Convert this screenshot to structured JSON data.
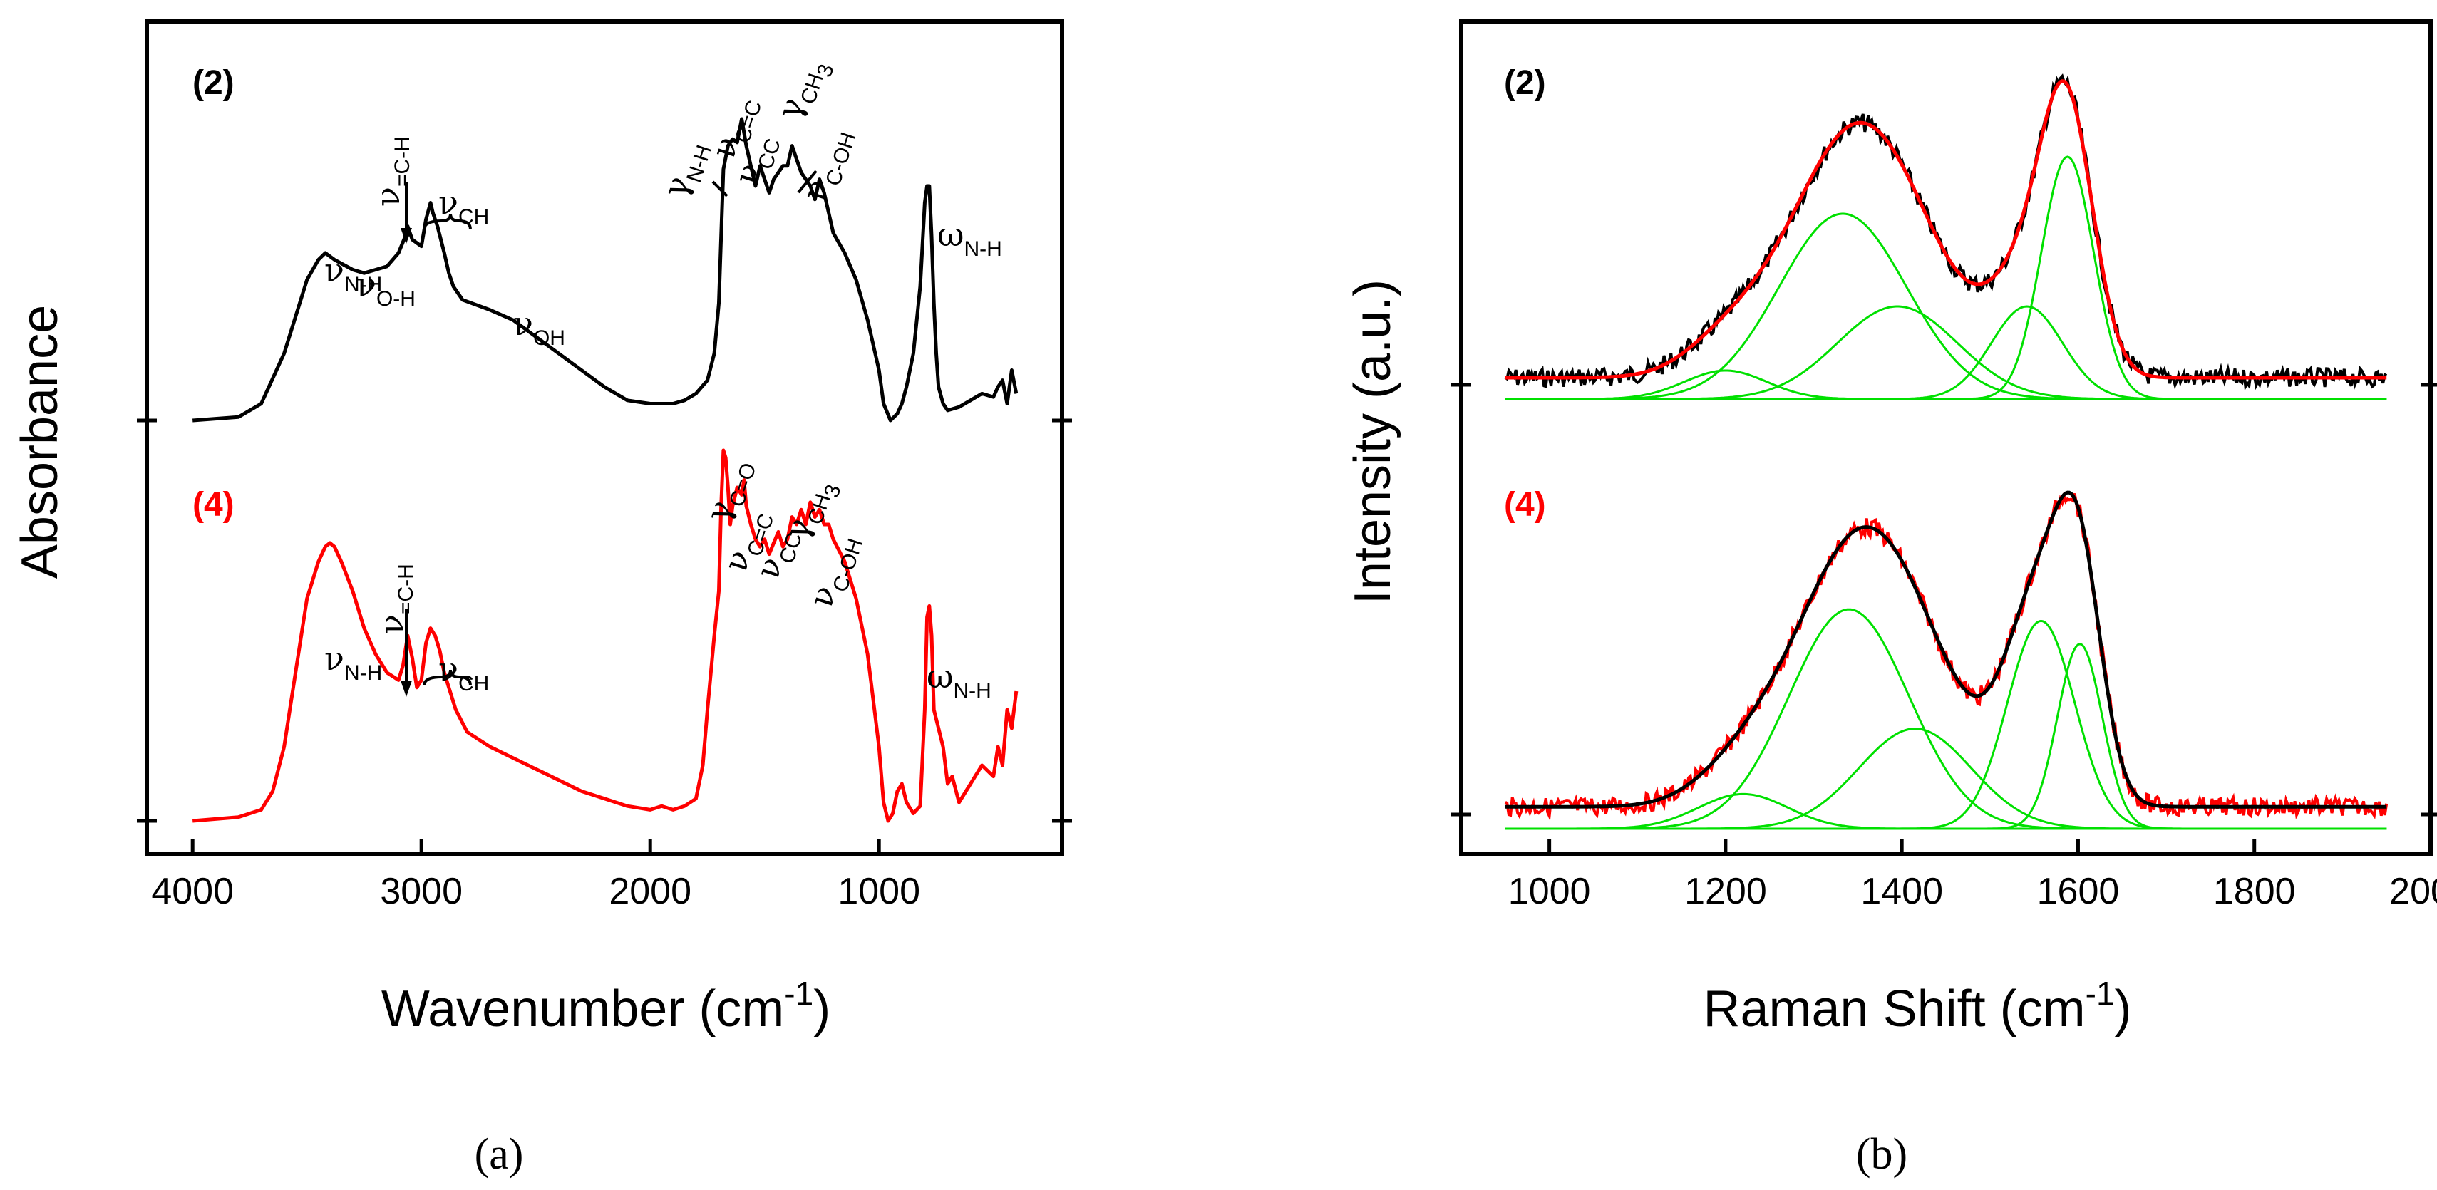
{
  "chart_data": [
    {
      "panel": "a",
      "type": "line",
      "caption": "(a)",
      "xlabel": "Wavenumber (cm",
      "xlabel_sup": "-1",
      "xlabel_end": ")",
      "ylabel": "Absorbance",
      "xlim": [
        4200,
        200
      ],
      "xticks": [
        4000,
        3000,
        2000,
        1000
      ],
      "xtick_labels": [
        "4000",
        "3000",
        "2000",
        "1000"
      ],
      "series": [
        {
          "name": "(2)",
          "color": "#000000",
          "x": [
            4000,
            3800,
            3700,
            3600,
            3500,
            3450,
            3420,
            3380,
            3300,
            3250,
            3200,
            3150,
            3100,
            3070,
            3060,
            3040,
            3000,
            2980,
            2960,
            2950,
            2930,
            2900,
            2880,
            2860,
            2820,
            2700,
            2600,
            2500,
            2400,
            2300,
            2200,
            2100,
            2000,
            1950,
            1900,
            1850,
            1800,
            1750,
            1720,
            1700,
            1690,
            1680,
            1660,
            1640,
            1620,
            1600,
            1580,
            1560,
            1540,
            1520,
            1500,
            1480,
            1460,
            1440,
            1420,
            1400,
            1380,
            1360,
            1340,
            1320,
            1300,
            1280,
            1260,
            1240,
            1220,
            1200,
            1150,
            1100,
            1050,
            1000,
            980,
            950,
            920,
            900,
            880,
            850,
            820,
            800,
            790,
            780,
            770,
            760,
            750,
            740,
            720,
            700,
            650,
            600,
            550,
            500,
            480,
            460,
            440,
            420,
            400
          ],
          "y": [
            0.0,
            0.01,
            0.05,
            0.2,
            0.42,
            0.48,
            0.5,
            0.48,
            0.45,
            0.44,
            0.45,
            0.46,
            0.5,
            0.55,
            0.58,
            0.54,
            0.52,
            0.6,
            0.65,
            0.62,
            0.58,
            0.5,
            0.44,
            0.4,
            0.36,
            0.33,
            0.3,
            0.25,
            0.2,
            0.15,
            0.1,
            0.06,
            0.05,
            0.05,
            0.05,
            0.06,
            0.08,
            0.12,
            0.2,
            0.35,
            0.55,
            0.75,
            0.82,
            0.84,
            0.83,
            0.9,
            0.82,
            0.76,
            0.7,
            0.76,
            0.72,
            0.68,
            0.72,
            0.74,
            0.76,
            0.76,
            0.82,
            0.78,
            0.74,
            0.72,
            0.7,
            0.66,
            0.72,
            0.68,
            0.62,
            0.56,
            0.5,
            0.42,
            0.3,
            0.15,
            0.05,
            0.0,
            0.02,
            0.05,
            0.1,
            0.2,
            0.4,
            0.65,
            0.7,
            0.7,
            0.55,
            0.35,
            0.2,
            0.1,
            0.05,
            0.03,
            0.04,
            0.06,
            0.08,
            0.07,
            0.1,
            0.12,
            0.05,
            0.15,
            0.08
          ]
        },
        {
          "name": "(4)",
          "color": "#ff0000",
          "x": [
            4000,
            3800,
            3700,
            3650,
            3600,
            3550,
            3500,
            3450,
            3420,
            3400,
            3380,
            3350,
            3300,
            3250,
            3200,
            3150,
            3100,
            3080,
            3060,
            3040,
            3020,
            3000,
            2980,
            2960,
            2940,
            2920,
            2900,
            2880,
            2850,
            2800,
            2700,
            2600,
            2500,
            2400,
            2300,
            2200,
            2100,
            2000,
            1950,
            1900,
            1850,
            1800,
            1770,
            1750,
            1720,
            1700,
            1690,
            1680,
            1670,
            1660,
            1650,
            1640,
            1620,
            1600,
            1590,
            1580,
            1560,
            1540,
            1520,
            1500,
            1480,
            1460,
            1440,
            1420,
            1400,
            1380,
            1360,
            1340,
            1320,
            1300,
            1280,
            1260,
            1240,
            1220,
            1200,
            1150,
            1100,
            1050,
            1000,
            980,
            960,
            940,
            920,
            900,
            880,
            850,
            820,
            800,
            790,
            780,
            770,
            760,
            740,
            720,
            700,
            680,
            650,
            600,
            550,
            500,
            480,
            460,
            440,
            420,
            400
          ],
          "y": [
            0.0,
            0.01,
            0.03,
            0.08,
            0.2,
            0.4,
            0.6,
            0.7,
            0.74,
            0.75,
            0.74,
            0.7,
            0.62,
            0.52,
            0.45,
            0.4,
            0.38,
            0.42,
            0.5,
            0.44,
            0.36,
            0.38,
            0.48,
            0.52,
            0.5,
            0.46,
            0.4,
            0.36,
            0.3,
            0.24,
            0.2,
            0.17,
            0.14,
            0.11,
            0.08,
            0.06,
            0.04,
            0.03,
            0.04,
            0.03,
            0.04,
            0.06,
            0.15,
            0.3,
            0.5,
            0.62,
            0.85,
            1.0,
            0.98,
            0.9,
            0.8,
            0.85,
            0.9,
            0.88,
            0.92,
            0.85,
            0.8,
            0.76,
            0.74,
            0.76,
            0.72,
            0.75,
            0.78,
            0.74,
            0.76,
            0.82,
            0.8,
            0.84,
            0.8,
            0.86,
            0.82,
            0.84,
            0.8,
            0.8,
            0.76,
            0.7,
            0.6,
            0.45,
            0.2,
            0.05,
            0.0,
            0.02,
            0.08,
            0.1,
            0.05,
            0.02,
            0.04,
            0.3,
            0.55,
            0.58,
            0.5,
            0.3,
            0.25,
            0.2,
            0.1,
            0.12,
            0.05,
            0.1,
            0.15,
            0.12,
            0.2,
            0.15,
            0.3,
            0.25,
            0.35
          ]
        }
      ],
      "annotations": {
        "s2": [
          {
            "sym": "ν",
            "sub": "N-H"
          },
          {
            "sym": "ν",
            "sub": "O-H"
          },
          {
            "sym": "ν",
            "sub": "=C-H"
          },
          {
            "sym": "ν",
            "sub": "CH"
          },
          {
            "sym": "ν",
            "sub": "OH"
          },
          {
            "sym": "γ",
            "sub": "N-H"
          },
          {
            "sym": "ν",
            "sub": "C=C"
          },
          {
            "sym": "ν",
            "sub": "CC"
          },
          {
            "sym": "γ",
            "sub": "CH",
            "sub2": "3"
          },
          {
            "sym": "ν",
            "sub": "C-OH"
          },
          {
            "sym": "ω",
            "sub": "N-H"
          }
        ],
        "s4": [
          {
            "sym": "ν",
            "sub": "N-H"
          },
          {
            "sym": "ν",
            "sub": "=C-H"
          },
          {
            "sym": "ν",
            "sub": "CH"
          },
          {
            "sym": "γ",
            "sub": "C=O"
          },
          {
            "sym": "ν",
            "sub": "C=C"
          },
          {
            "sym": "ν",
            "sub": "CC"
          },
          {
            "sym": "γ",
            "sub": "CH",
            "sub2": "3"
          },
          {
            "sym": "ν",
            "sub": "C-OH"
          },
          {
            "sym": "ω",
            "sub": "N-H"
          }
        ]
      }
    },
    {
      "panel": "b",
      "type": "line",
      "caption": "(b)",
      "xlabel": "Raman Shift (cm",
      "xlabel_sup": "-1",
      "xlabel_end": ")",
      "ylabel": "Intensity (a.u.)",
      "xlim": [
        900,
        2000
      ],
      "xticks": [
        1000,
        1200,
        1400,
        1600,
        1800,
        2000
      ],
      "xtick_labels": [
        "1000",
        "1200",
        "1400",
        "1600",
        "1800",
        "2000"
      ],
      "range": [
        950,
        1950
      ],
      "samples": [
        {
          "name": "(2)",
          "data_color": "#000000",
          "fit_color": "#ff0000",
          "component_color": "#00e000",
          "components": [
            {
              "center": 1200,
              "height": 0.08,
              "width": 110
            },
            {
              "center": 1333,
              "height": 0.52,
              "width": 170
            },
            {
              "center": 1395,
              "height": 0.26,
              "width": 160
            },
            {
              "center": 1542,
              "height": 0.26,
              "width": 95
            },
            {
              "center": 1588,
              "height": 0.68,
              "width": 70
            }
          ]
        },
        {
          "name": "(4)",
          "data_color": "#ff0000",
          "fit_color": "#000000",
          "component_color": "#00e000",
          "components": [
            {
              "center": 1220,
              "height": 0.09,
              "width": 120
            },
            {
              "center": 1340,
              "height": 0.57,
              "width": 160
            },
            {
              "center": 1415,
              "height": 0.26,
              "width": 150
            },
            {
              "center": 1558,
              "height": 0.54,
              "width": 90
            },
            {
              "center": 1602,
              "height": 0.48,
              "width": 60
            }
          ]
        }
      ]
    }
  ]
}
